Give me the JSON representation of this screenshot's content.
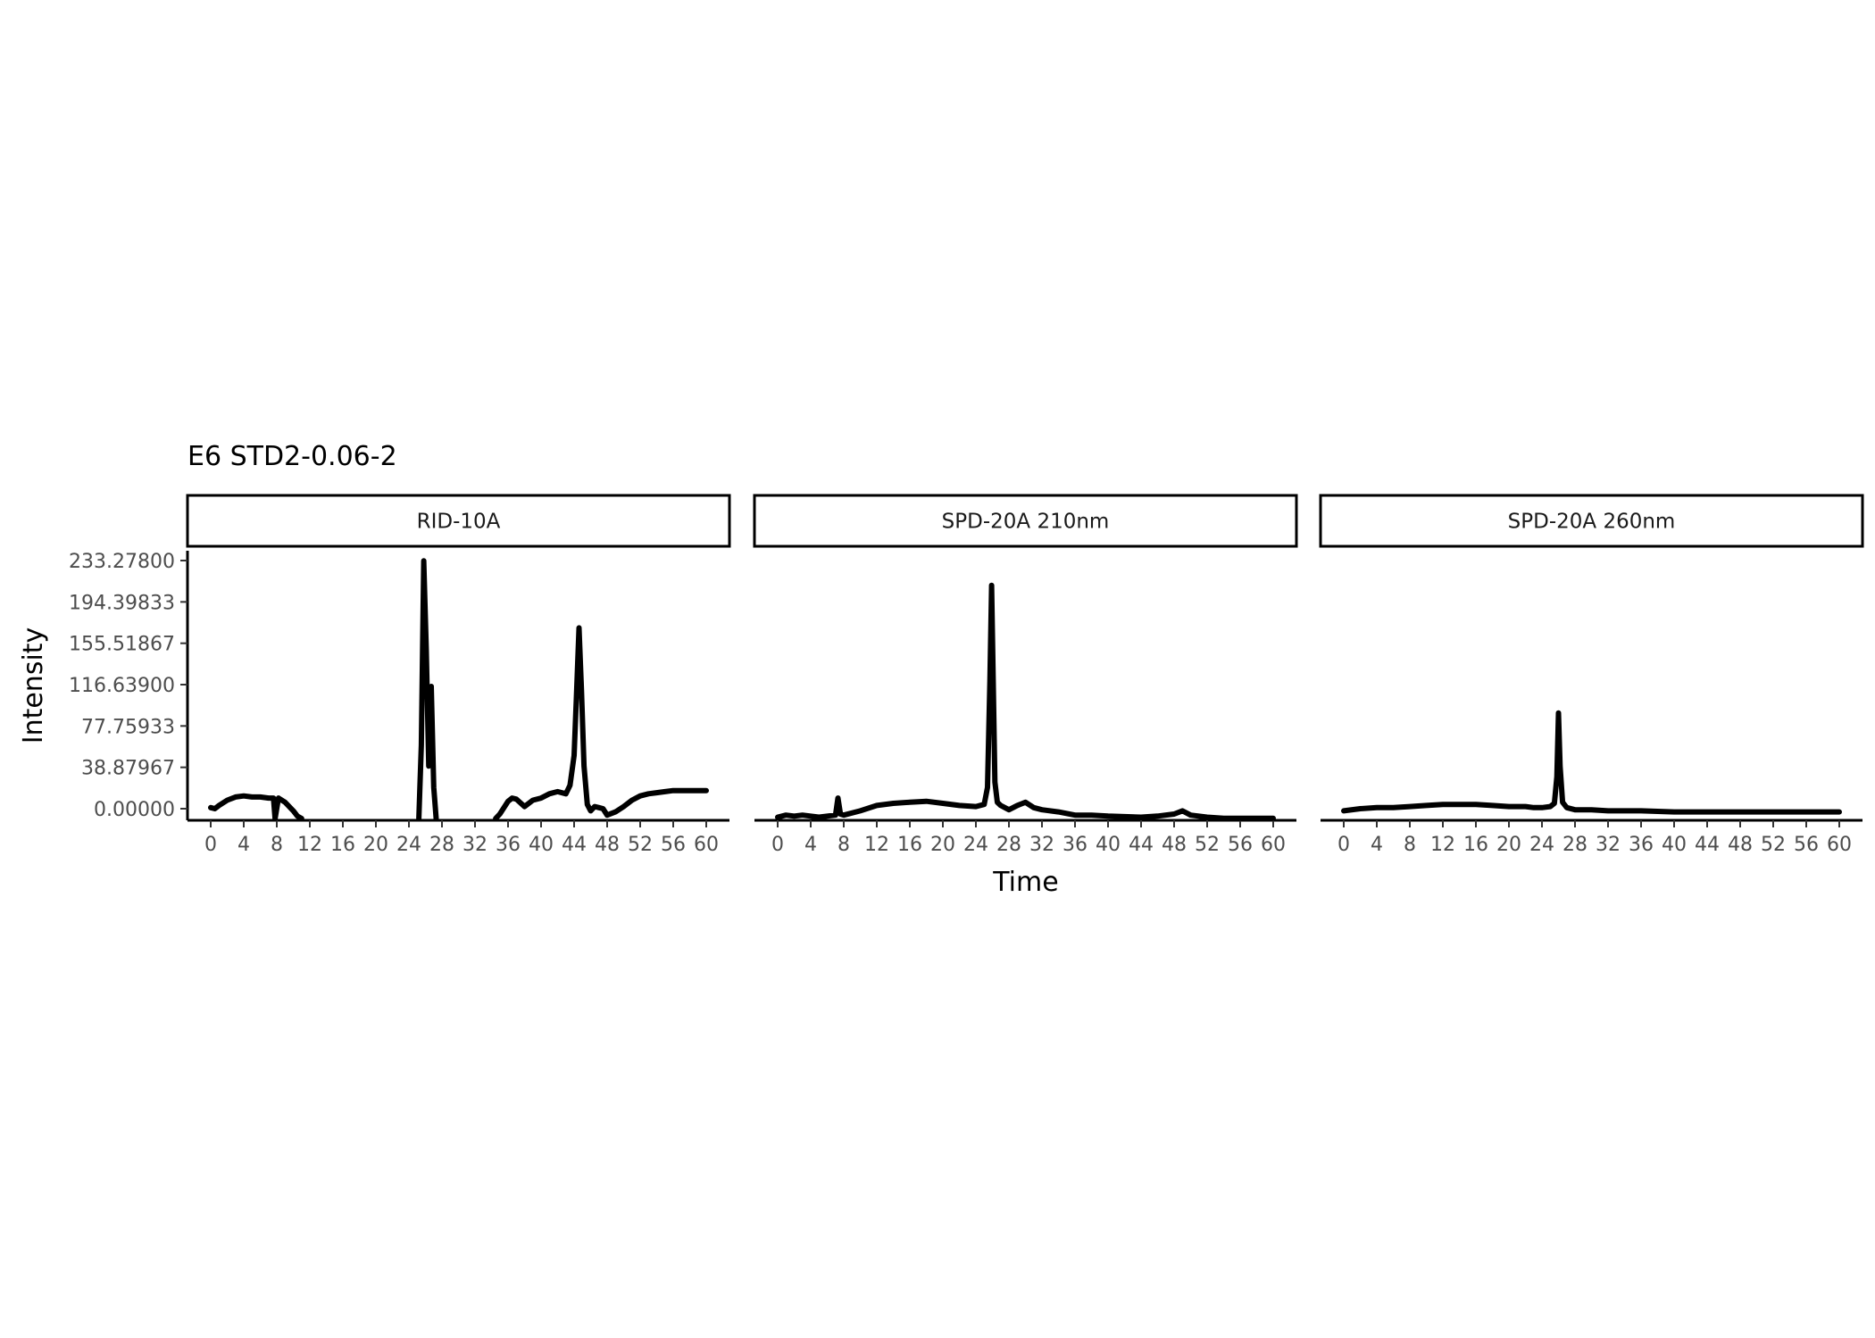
{
  "chart_data": {
    "type": "line",
    "title": "E6 STD2-0.06-2",
    "xlabel": "Time",
    "ylabel": "Intensity",
    "xlim": [
      0,
      60
    ],
    "ylim": [
      0,
      233.278
    ],
    "x_ticks": [
      "0",
      "4",
      "8",
      "12",
      "16",
      "20",
      "24",
      "28",
      "32",
      "36",
      "40",
      "44",
      "48",
      "52",
      "56",
      "60"
    ],
    "y_ticks": [
      "0.00000",
      "38.87967",
      "77.75933",
      "116.63900",
      "155.51867",
      "194.39833",
      "233.27800"
    ],
    "y_tick_values": [
      0,
      38.87967,
      77.75933,
      116.639,
      155.51867,
      194.39833,
      233.278
    ],
    "grid": false,
    "legend": "none",
    "panels": [
      {
        "name": "RID-10A",
        "series": [
          {
            "x": [
              0,
              0.5,
              1,
              2,
              3,
              4,
              5,
              6,
              7,
              7.6,
              7.8,
              8.2,
              9,
              10,
              10.5,
              11
            ],
            "y": [
              1,
              0,
              3,
              8,
              11,
              12,
              11,
              11,
              10,
              10,
              -12,
              10,
              6,
              -2,
              -7,
              -10
            ]
          },
          {
            "x": [
              25.2,
              25.5,
              25.8,
              26.1,
              26.4,
              26.7,
              27.0,
              27.3
            ],
            "y": [
              -12,
              60,
              233,
              150,
              40,
              115,
              20,
              -12
            ]
          },
          {
            "x": [
              34.5,
              35,
              36,
              36.5,
              37,
              38,
              39,
              40,
              41,
              42,
              43,
              43.5,
              44,
              44.3,
              44.6,
              44.9,
              45.2,
              45.6,
              46,
              46.5,
              47,
              47.5,
              48,
              49,
              50,
              51,
              52,
              53,
              54,
              55,
              56,
              57,
              58,
              59,
              60
            ],
            "y": [
              -12,
              -5,
              7,
              10,
              9,
              2,
              8,
              10,
              14,
              16,
              14,
              22,
              50,
              110,
              170,
              110,
              40,
              4,
              -2,
              2,
              1,
              0,
              -6,
              -3,
              2,
              8,
              12,
              14,
              15,
              16,
              17,
              17,
              17,
              17,
              17
            ]
          }
        ]
      },
      {
        "name": "SPD-20A 210nm",
        "series": [
          {
            "x": [
              0,
              1,
              2,
              3,
              4,
              5,
              6,
              7,
              7.3,
              7.6,
              8,
              10,
              12,
              14,
              16,
              18,
              20,
              22,
              24,
              25,
              25.4,
              25.7,
              25.9,
              26.1,
              26.3,
              26.6,
              27,
              28,
              29,
              30,
              31,
              32,
              34,
              36,
              38,
              40,
              44,
              46,
              48,
              49,
              50,
              52,
              54,
              56,
              58,
              60
            ],
            "y": [
              -8,
              -6,
              -7,
              -6,
              -7,
              -8,
              -7,
              -6,
              10,
              -5,
              -6,
              -2,
              3,
              5,
              6,
              7,
              5,
              3,
              2,
              4,
              20,
              120,
              210,
              120,
              25,
              6,
              3,
              -1,
              3,
              6,
              1,
              -1,
              -3,
              -6,
              -6,
              -7,
              -8,
              -7,
              -5,
              -2,
              -6,
              -8,
              -9,
              -9,
              -9,
              -9
            ]
          }
        ]
      },
      {
        "name": "SPD-20A 260nm",
        "series": [
          {
            "x": [
              0,
              2,
              4,
              6,
              8,
              10,
              12,
              14,
              16,
              18,
              20,
              22,
              23,
              24,
              25,
              25.5,
              25.8,
              26.0,
              26.2,
              26.5,
              27,
              28,
              30,
              32,
              34,
              36,
              40,
              44,
              48,
              52,
              56,
              60
            ],
            "y": [
              -2,
              0,
              1,
              1,
              2,
              3,
              4,
              4,
              4,
              3,
              2,
              2,
              1,
              1,
              2,
              5,
              30,
              90,
              40,
              6,
              1,
              -1,
              -1,
              -2,
              -2,
              -2,
              -3,
              -3,
              -3,
              -3,
              -3,
              -3
            ]
          }
        ]
      }
    ]
  }
}
